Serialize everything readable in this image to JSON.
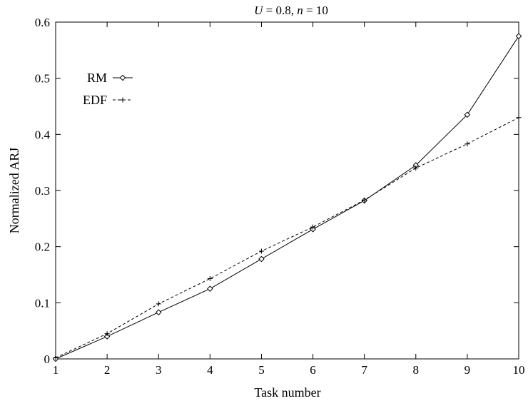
{
  "chart_data": {
    "type": "line",
    "title_parts": {
      "var1": "U",
      "mid": " = 0.8, ",
      "var2": "n",
      "end": " = 10"
    },
    "xlabel": "Task number",
    "ylabel": "Normalized  ARJ",
    "x": [
      1,
      2,
      3,
      4,
      5,
      6,
      7,
      8,
      9,
      10
    ],
    "xlim": [
      1,
      10
    ],
    "ylim": [
      0,
      0.6
    ],
    "xticks": [
      "1",
      "2",
      "3",
      "4",
      "5",
      "6",
      "7",
      "8",
      "9",
      "10"
    ],
    "yticks": [
      "0",
      "0.1",
      "0.2",
      "0.3",
      "0.4",
      "0.5",
      "0.6"
    ],
    "grid": false,
    "legend_position": "top-left",
    "series": [
      {
        "name": "RM",
        "marker": "diamond",
        "line": "solid",
        "values": [
          0.0,
          0.04,
          0.083,
          0.125,
          0.178,
          0.231,
          0.282,
          0.345,
          0.435,
          0.575
        ]
      },
      {
        "name": "EDF",
        "marker": "plus",
        "line": "dashed",
        "values": [
          0.002,
          0.045,
          0.098,
          0.143,
          0.192,
          0.235,
          0.283,
          0.34,
          0.383,
          0.43
        ]
      }
    ]
  }
}
